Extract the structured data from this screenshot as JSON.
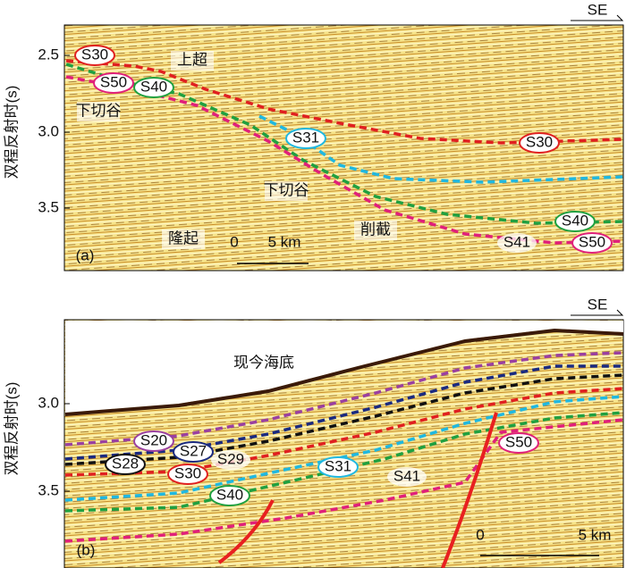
{
  "panels": [
    {
      "label": "(a)",
      "direction": "SE",
      "y_axis": {
        "title": "双程反射时(s)",
        "ticks": [
          "2.5",
          "3.0",
          "3.5"
        ]
      },
      "annotations": [
        "上超",
        "下切谷",
        "下切谷",
        "隆起",
        "削截"
      ],
      "horizons": [
        "S30",
        "S50",
        "S40",
        "S31",
        "S30",
        "S40",
        "S41",
        "S50"
      ],
      "scale": {
        "start": "0",
        "end": "5 km"
      }
    },
    {
      "label": "(b)",
      "direction": "SE",
      "y_axis": {
        "title": "双程反射时(s)",
        "ticks": [
          "3.0",
          "3.5"
        ]
      },
      "annotations": [
        "现今海底"
      ],
      "horizons": [
        "S20",
        "S27",
        "S28",
        "S29",
        "S30",
        "S31",
        "S41",
        "S40",
        "S50"
      ],
      "scale": {
        "start": "0",
        "end": "5 km"
      }
    }
  ]
}
